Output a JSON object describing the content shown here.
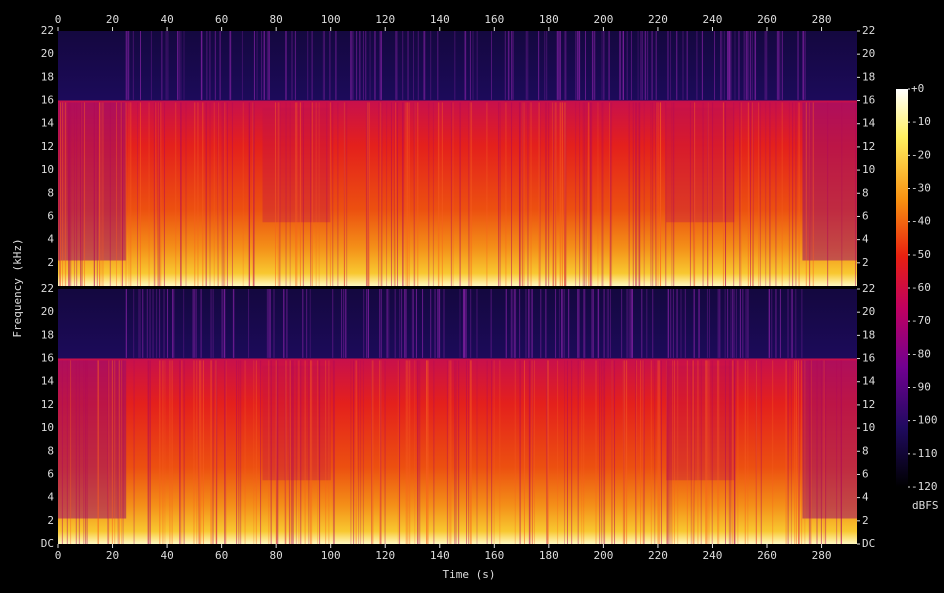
{
  "chart_data": {
    "type": "spectrogram",
    "x_label": "Time (s)",
    "y_label": "Frequency (kHz)",
    "xlim": [
      0,
      293
    ],
    "xticks": [
      0,
      20,
      40,
      60,
      80,
      100,
      120,
      140,
      160,
      180,
      200,
      220,
      240,
      260,
      280
    ],
    "panels": [
      {
        "ylim": [
          0,
          22
        ],
        "yticks": [
          2,
          4,
          6,
          8,
          10,
          12,
          14,
          16,
          18,
          20,
          22
        ]
      },
      {
        "ylim": [
          0,
          22
        ],
        "yticks": [
          {
            "value": 0,
            "label": "DC"
          },
          2,
          4,
          6,
          8,
          10,
          12,
          14,
          16,
          18,
          20,
          22
        ]
      }
    ],
    "colorbar": {
      "label": "dBFS",
      "lim": [
        -120,
        0
      ],
      "ticks": [
        {
          "value": 0,
          "label": "+0"
        },
        -10,
        -20,
        -30,
        -40,
        -50,
        -60,
        -70,
        -80,
        -90,
        -100,
        -110,
        -120
      ]
    }
  }
}
